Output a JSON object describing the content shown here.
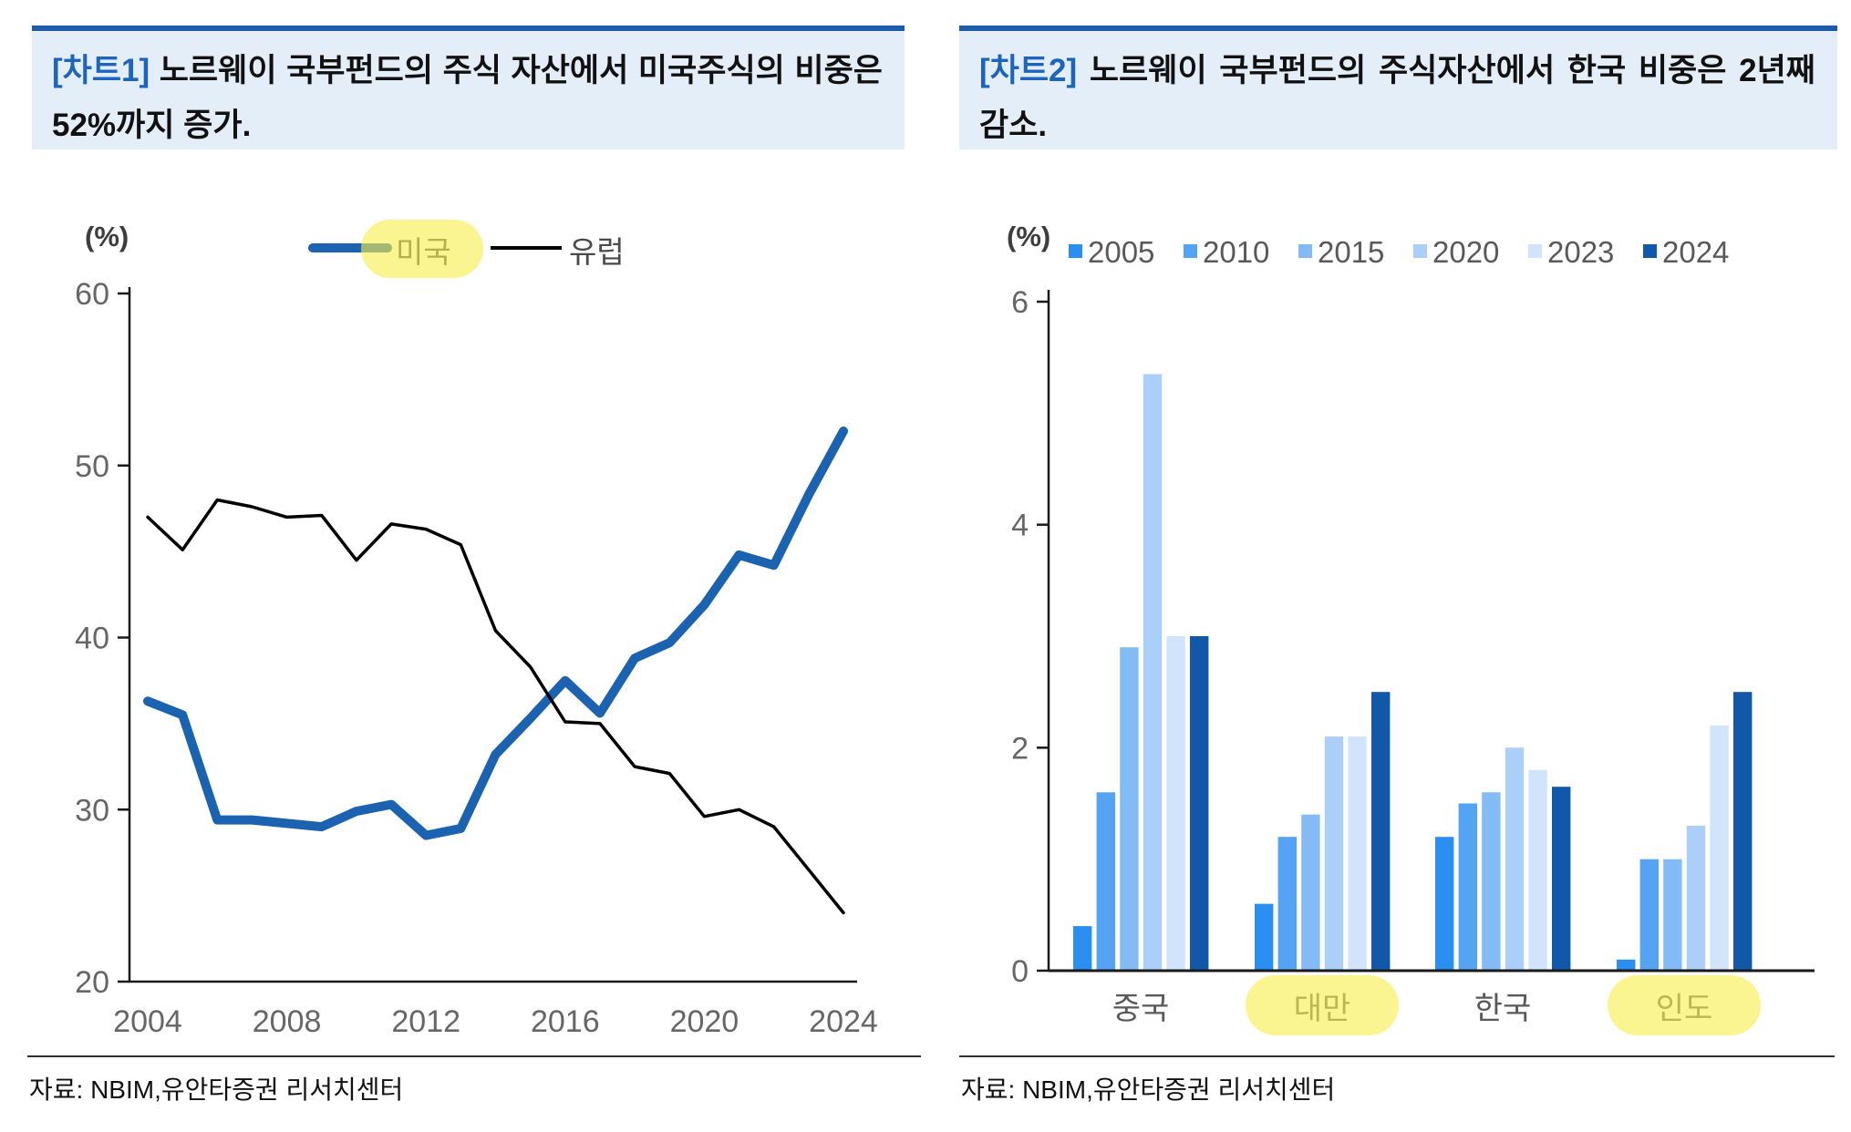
{
  "colors": {
    "title_bar_border": "#1E5BA8",
    "title_bar_bg": "#E4EEF9",
    "title_tag_blue": "#1C64BE",
    "axis": "#1a1a1a",
    "tick_label_gray": "#666666",
    "category_label_gray": "#595959",
    "highlight_yellow": "#F7ED4E"
  },
  "charts": [
    {
      "title_tag": "[차트1]",
      "title_text": "노르웨이 국부펀드의 주식 자산에서 미국주식의 비중은 52%까지 증가.",
      "unit_label": "(%)",
      "source": "자료: NBIM,유안타증권 리서치센터",
      "chart_data": {
        "type": "line",
        "x": [
          2004,
          2005,
          2006,
          2007,
          2008,
          2009,
          2010,
          2011,
          2012,
          2013,
          2014,
          2015,
          2016,
          2017,
          2018,
          2019,
          2020,
          2021,
          2022,
          2023,
          2024
        ],
        "xticks": [
          2004,
          2008,
          2012,
          2016,
          2020,
          2024
        ],
        "ylim": [
          20,
          60
        ],
        "yticks": [
          20,
          30,
          40,
          50,
          60
        ],
        "grid": false,
        "legend_position": "top",
        "highlighted_legend": "미국",
        "series": [
          {
            "name": "미국",
            "color": "#1B62B0",
            "stroke_width": 10,
            "values": [
              36.3,
              35.5,
              29.4,
              29.4,
              29.2,
              29.0,
              29.9,
              30.3,
              28.5,
              28.9,
              33.2,
              35.3,
              37.5,
              35.6,
              38.8,
              39.7,
              41.9,
              44.8,
              44.2,
              48.3,
              52.0
            ]
          },
          {
            "name": "유럽",
            "color": "#000000",
            "stroke_width": 3.5,
            "values": [
              47.0,
              45.1,
              48.0,
              47.6,
              47.0,
              47.1,
              44.5,
              46.6,
              46.3,
              45.4,
              40.4,
              38.3,
              35.1,
              35.0,
              32.5,
              32.1,
              29.6,
              30.0,
              29.0,
              26.5,
              24.0
            ]
          }
        ]
      }
    },
    {
      "title_tag": "[차트2]",
      "title_text": "노르웨이 국부펀드의 주식자산에서 한국 비중은 2년째 감소.",
      "unit_label": "(%)",
      "source": "자료: NBIM,유안타증권 리서치센터",
      "chart_data": {
        "type": "bar",
        "categories": [
          "중국",
          "대만",
          "한국",
          "인도"
        ],
        "highlighted_categories": [
          "대만",
          "인도"
        ],
        "ylim": [
          0,
          6
        ],
        "yticks": [
          0,
          2,
          4,
          6
        ],
        "grid": false,
        "legend_position": "top",
        "series": [
          {
            "name": "2005",
            "color": "#2B8FF2",
            "values": [
              0.4,
              0.6,
              1.2,
              0.1
            ]
          },
          {
            "name": "2010",
            "color": "#55A3F3",
            "values": [
              1.6,
              1.2,
              1.5,
              1.0
            ]
          },
          {
            "name": "2015",
            "color": "#83BBF5",
            "values": [
              2.9,
              1.4,
              1.6,
              1.0
            ]
          },
          {
            "name": "2020",
            "color": "#ABCFF8",
            "values": [
              5.35,
              2.1,
              2.0,
              1.3
            ]
          },
          {
            "name": "2023",
            "color": "#D2E4FB",
            "values": [
              3.0,
              2.1,
              1.8,
              2.2
            ]
          },
          {
            "name": "2024",
            "color": "#1158A9",
            "values": [
              3.0,
              2.5,
              1.65,
              2.5
            ]
          }
        ]
      }
    }
  ]
}
